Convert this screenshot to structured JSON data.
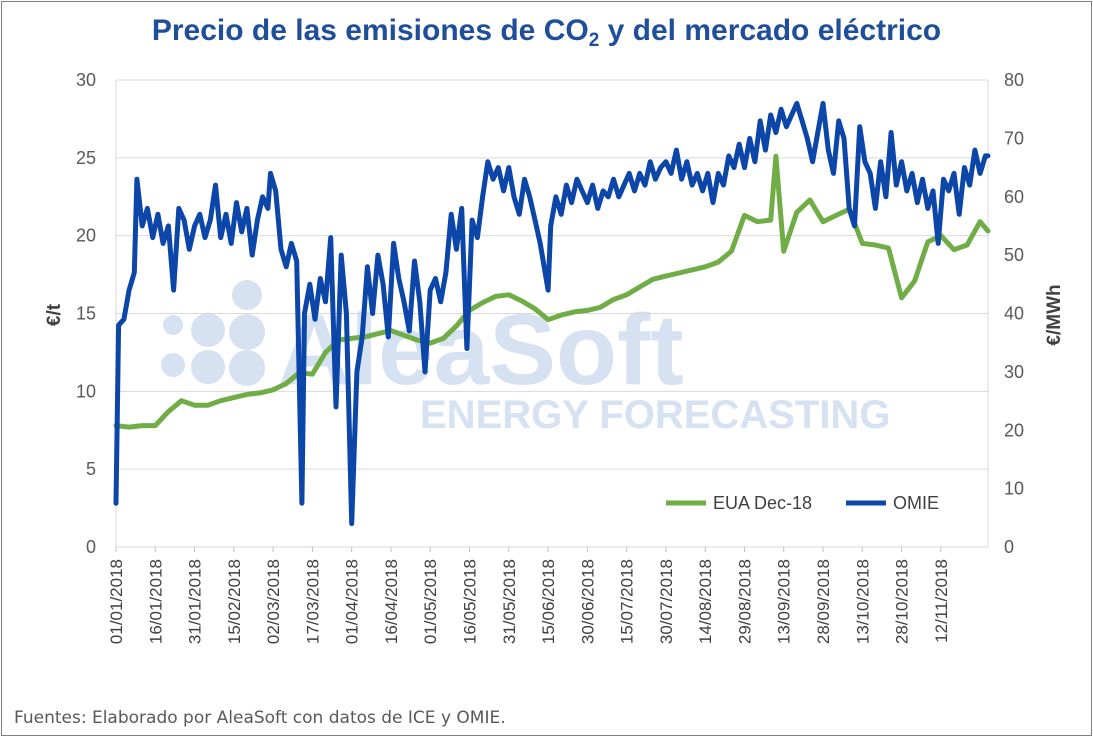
{
  "title": {
    "main": "Precio de las emisiones de CO",
    "subscript": "2",
    "rest": " y del mercado eléctrico"
  },
  "source": "Fuentes: Elaborado por AleaSoft con datos de ICE y OMIE.",
  "watermark": {
    "brand": "AleaSoft",
    "tagline": "ENERGY FORECASTING"
  },
  "colors": {
    "title": "#1f4e9a",
    "eua": "#70ad47",
    "omie": "#0b46a8",
    "grid": "#d9d9d9",
    "watermark": "#d6e1f1"
  },
  "chart_data": {
    "type": "line",
    "title": "Precio de las emisiones de CO2 y del mercado eléctrico",
    "xlabel": "",
    "ylabel_left": "€/t",
    "ylabel_right": "€/MWh",
    "ylim_left": [
      0,
      30
    ],
    "ylim_right": [
      0,
      80
    ],
    "yticks_left": [
      "0",
      "5",
      "10",
      "15",
      "20",
      "25",
      "30"
    ],
    "yticks_right": [
      "0",
      "10",
      "20",
      "30",
      "40",
      "50",
      "60",
      "70",
      "80"
    ],
    "x_range": [
      "01/01/2018",
      "30/11/2018"
    ],
    "x_ticks": [
      "01/01/2018",
      "16/01/2018",
      "31/01/2018",
      "15/02/2018",
      "02/03/2018",
      "17/03/2018",
      "01/04/2018",
      "16/04/2018",
      "01/05/2018",
      "16/05/2018",
      "31/05/2018",
      "15/06/2018",
      "30/06/2018",
      "15/07/2018",
      "30/07/2018",
      "14/08/2018",
      "29/08/2018",
      "13/09/2018",
      "28/09/2018",
      "13/10/2018",
      "28/10/2018",
      "12/11/2018"
    ],
    "grid": true,
    "legend_position": "bottom-right",
    "series": [
      {
        "name": "EUA Dec-18",
        "axis": "left",
        "points": [
          [
            "01/01/2018",
            7.8
          ],
          [
            "06/01/2018",
            7.7
          ],
          [
            "11/01/2018",
            7.8
          ],
          [
            "16/01/2018",
            7.8
          ],
          [
            "21/01/2018",
            8.7
          ],
          [
            "26/01/2018",
            9.4
          ],
          [
            "31/01/2018",
            9.1
          ],
          [
            "05/02/2018",
            9.1
          ],
          [
            "10/02/2018",
            9.4
          ],
          [
            "15/02/2018",
            9.6
          ],
          [
            "20/02/2018",
            9.8
          ],
          [
            "25/02/2018",
            9.9
          ],
          [
            "02/03/2018",
            10.1
          ],
          [
            "07/03/2018",
            10.5
          ],
          [
            "12/03/2018",
            11.2
          ],
          [
            "17/03/2018",
            11.1
          ],
          [
            "22/03/2018",
            12.5
          ],
          [
            "27/03/2018",
            13.3
          ],
          [
            "01/04/2018",
            13.4
          ],
          [
            "06/04/2018",
            13.5
          ],
          [
            "11/04/2018",
            13.7
          ],
          [
            "16/04/2018",
            13.9
          ],
          [
            "21/04/2018",
            13.6
          ],
          [
            "26/04/2018",
            13.3
          ],
          [
            "01/05/2018",
            13.1
          ],
          [
            "06/05/2018",
            13.4
          ],
          [
            "11/05/2018",
            14.2
          ],
          [
            "16/05/2018",
            15.2
          ],
          [
            "21/05/2018",
            15.7
          ],
          [
            "26/05/2018",
            16.1
          ],
          [
            "31/05/2018",
            16.2
          ],
          [
            "05/06/2018",
            15.8
          ],
          [
            "10/06/2018",
            15.3
          ],
          [
            "15/06/2018",
            14.6
          ],
          [
            "20/06/2018",
            14.9
          ],
          [
            "25/06/2018",
            15.1
          ],
          [
            "30/06/2018",
            15.2
          ],
          [
            "05/07/2018",
            15.4
          ],
          [
            "10/07/2018",
            15.9
          ],
          [
            "15/07/2018",
            16.2
          ],
          [
            "20/07/2018",
            16.7
          ],
          [
            "25/07/2018",
            17.2
          ],
          [
            "30/07/2018",
            17.4
          ],
          [
            "04/08/2018",
            17.6
          ],
          [
            "09/08/2018",
            17.8
          ],
          [
            "14/08/2018",
            18.0
          ],
          [
            "19/08/2018",
            18.3
          ],
          [
            "24/08/2018",
            19.0
          ],
          [
            "29/08/2018",
            21.3
          ],
          [
            "03/09/2018",
            20.9
          ],
          [
            "08/09/2018",
            21.0
          ],
          [
            "10/09/2018",
            25.1
          ],
          [
            "13/09/2018",
            19.0
          ],
          [
            "18/09/2018",
            21.5
          ],
          [
            "23/09/2018",
            22.3
          ],
          [
            "28/09/2018",
            20.9
          ],
          [
            "03/10/2018",
            21.3
          ],
          [
            "08/10/2018",
            21.7
          ],
          [
            "13/10/2018",
            19.5
          ],
          [
            "18/10/2018",
            19.4
          ],
          [
            "23/10/2018",
            19.2
          ],
          [
            "28/10/2018",
            16.0
          ],
          [
            "02/11/2018",
            17.1
          ],
          [
            "07/11/2018",
            19.6
          ],
          [
            "12/11/2018",
            20.0
          ],
          [
            "17/11/2018",
            19.1
          ],
          [
            "22/11/2018",
            19.4
          ],
          [
            "27/11/2018",
            20.9
          ],
          [
            "30/11/2018",
            20.3
          ]
        ]
      },
      {
        "name": "OMIE",
        "axis": "right",
        "points": [
          [
            "01/01/2018",
            7.5
          ],
          [
            "02/01/2018",
            38
          ],
          [
            "04/01/2018",
            39
          ],
          [
            "06/01/2018",
            44
          ],
          [
            "08/01/2018",
            47
          ],
          [
            "09/01/2018",
            63
          ],
          [
            "11/01/2018",
            55
          ],
          [
            "13/01/2018",
            58
          ],
          [
            "15/01/2018",
            53
          ],
          [
            "17/01/2018",
            57
          ],
          [
            "19/01/2018",
            52
          ],
          [
            "21/01/2018",
            55
          ],
          [
            "23/01/2018",
            44
          ],
          [
            "25/01/2018",
            58
          ],
          [
            "27/01/2018",
            56
          ],
          [
            "29/01/2018",
            51
          ],
          [
            "31/01/2018",
            55
          ],
          [
            "02/02/2018",
            57
          ],
          [
            "04/02/2018",
            53
          ],
          [
            "06/02/2018",
            56
          ],
          [
            "08/02/2018",
            62
          ],
          [
            "10/02/2018",
            53
          ],
          [
            "12/02/2018",
            57
          ],
          [
            "14/02/2018",
            52
          ],
          [
            "16/02/2018",
            59
          ],
          [
            "18/02/2018",
            54
          ],
          [
            "20/02/2018",
            58
          ],
          [
            "22/02/2018",
            50
          ],
          [
            "24/02/2018",
            56
          ],
          [
            "26/02/2018",
            60
          ],
          [
            "28/02/2018",
            58
          ],
          [
            "01/03/2018",
            64
          ],
          [
            "03/03/2018",
            61
          ],
          [
            "05/03/2018",
            51
          ],
          [
            "07/03/2018",
            48
          ],
          [
            "09/03/2018",
            52
          ],
          [
            "11/03/2018",
            49
          ],
          [
            "13/03/2018",
            7.5
          ],
          [
            "14/03/2018",
            40
          ],
          [
            "16/03/2018",
            45
          ],
          [
            "18/03/2018",
            39
          ],
          [
            "20/03/2018",
            46
          ],
          [
            "22/03/2018",
            42
          ],
          [
            "24/03/2018",
            53
          ],
          [
            "26/03/2018",
            24
          ],
          [
            "28/03/2018",
            50
          ],
          [
            "30/03/2018",
            40
          ],
          [
            "01/04/2018",
            4
          ],
          [
            "03/04/2018",
            30
          ],
          [
            "05/04/2018",
            36
          ],
          [
            "07/04/2018",
            48
          ],
          [
            "09/04/2018",
            40
          ],
          [
            "11/04/2018",
            50
          ],
          [
            "13/04/2018",
            45
          ],
          [
            "15/04/2018",
            36
          ],
          [
            "17/04/2018",
            52
          ],
          [
            "19/04/2018",
            46
          ],
          [
            "21/04/2018",
            42
          ],
          [
            "23/04/2018",
            37
          ],
          [
            "25/04/2018",
            49
          ],
          [
            "27/04/2018",
            42
          ],
          [
            "29/04/2018",
            30
          ],
          [
            "01/05/2018",
            44
          ],
          [
            "03/05/2018",
            46
          ],
          [
            "05/05/2018",
            42
          ],
          [
            "07/05/2018",
            47
          ],
          [
            "09/05/2018",
            57
          ],
          [
            "11/05/2018",
            51
          ],
          [
            "13/05/2018",
            58
          ],
          [
            "15/05/2018",
            34
          ],
          [
            "17/05/2018",
            56
          ],
          [
            "19/05/2018",
            53
          ],
          [
            "21/05/2018",
            60
          ],
          [
            "23/05/2018",
            66
          ],
          [
            "25/05/2018",
            63
          ],
          [
            "27/05/2018",
            65
          ],
          [
            "29/05/2018",
            61
          ],
          [
            "31/05/2018",
            65
          ],
          [
            "02/06/2018",
            60
          ],
          [
            "04/06/2018",
            57
          ],
          [
            "06/06/2018",
            63
          ],
          [
            "08/06/2018",
            60
          ],
          [
            "10/06/2018",
            56
          ],
          [
            "12/06/2018",
            52
          ],
          [
            "15/06/2018",
            44
          ],
          [
            "16/06/2018",
            55
          ],
          [
            "18/06/2018",
            60
          ],
          [
            "20/06/2018",
            57
          ],
          [
            "22/06/2018",
            62
          ],
          [
            "24/06/2018",
            59
          ],
          [
            "26/06/2018",
            63
          ],
          [
            "28/06/2018",
            61
          ],
          [
            "30/06/2018",
            59
          ],
          [
            "02/07/2018",
            62
          ],
          [
            "04/07/2018",
            58
          ],
          [
            "06/07/2018",
            61
          ],
          [
            "08/07/2018",
            60
          ],
          [
            "10/07/2018",
            63
          ],
          [
            "12/07/2018",
            60
          ],
          [
            "14/07/2018",
            62
          ],
          [
            "16/07/2018",
            64
          ],
          [
            "18/07/2018",
            61
          ],
          [
            "20/07/2018",
            64
          ],
          [
            "22/07/2018",
            62
          ],
          [
            "24/07/2018",
            66
          ],
          [
            "26/07/2018",
            63
          ],
          [
            "28/07/2018",
            65
          ],
          [
            "30/07/2018",
            66
          ],
          [
            "01/08/2018",
            64
          ],
          [
            "03/08/2018",
            68
          ],
          [
            "05/08/2018",
            63
          ],
          [
            "07/08/2018",
            66
          ],
          [
            "09/08/2018",
            62
          ],
          [
            "11/08/2018",
            64
          ],
          [
            "13/08/2018",
            61
          ],
          [
            "15/08/2018",
            64
          ],
          [
            "17/08/2018",
            59
          ],
          [
            "19/08/2018",
            64
          ],
          [
            "21/08/2018",
            62
          ],
          [
            "23/08/2018",
            67
          ],
          [
            "25/08/2018",
            65
          ],
          [
            "27/08/2018",
            69
          ],
          [
            "29/08/2018",
            65
          ],
          [
            "31/08/2018",
            70
          ],
          [
            "02/09/2018",
            66
          ],
          [
            "04/09/2018",
            73
          ],
          [
            "06/09/2018",
            68
          ],
          [
            "08/09/2018",
            74
          ],
          [
            "10/09/2018",
            71
          ],
          [
            "12/09/2018",
            75
          ],
          [
            "14/09/2018",
            72
          ],
          [
            "16/09/2018",
            74
          ],
          [
            "18/09/2018",
            76
          ],
          [
            "20/09/2018",
            73
          ],
          [
            "22/09/2018",
            70
          ],
          [
            "24/09/2018",
            66
          ],
          [
            "26/09/2018",
            71
          ],
          [
            "28/09/2018",
            76
          ],
          [
            "30/09/2018",
            68
          ],
          [
            "02/10/2018",
            64
          ],
          [
            "04/10/2018",
            73
          ],
          [
            "06/10/2018",
            70
          ],
          [
            "08/10/2018",
            58
          ],
          [
            "10/10/2018",
            55
          ],
          [
            "12/10/2018",
            72
          ],
          [
            "14/10/2018",
            66
          ],
          [
            "16/10/2018",
            64
          ],
          [
            "18/10/2018",
            58
          ],
          [
            "20/10/2018",
            66
          ],
          [
            "22/10/2018",
            60
          ],
          [
            "24/10/2018",
            71
          ],
          [
            "26/10/2018",
            62
          ],
          [
            "28/10/2018",
            66
          ],
          [
            "30/10/2018",
            61
          ],
          [
            "01/11/2018",
            64
          ],
          [
            "03/11/2018",
            59
          ],
          [
            "05/11/2018",
            63
          ],
          [
            "07/11/2018",
            58
          ],
          [
            "09/11/2018",
            61
          ],
          [
            "11/11/2018",
            52
          ],
          [
            "13/11/2018",
            63
          ],
          [
            "15/11/2018",
            61
          ],
          [
            "17/11/2018",
            64
          ],
          [
            "19/11/2018",
            57
          ],
          [
            "21/11/2018",
            65
          ],
          [
            "23/11/2018",
            62
          ],
          [
            "25/11/2018",
            68
          ],
          [
            "27/11/2018",
            64
          ],
          [
            "29/11/2018",
            67
          ],
          [
            "30/11/2018",
            67
          ]
        ]
      }
    ]
  }
}
